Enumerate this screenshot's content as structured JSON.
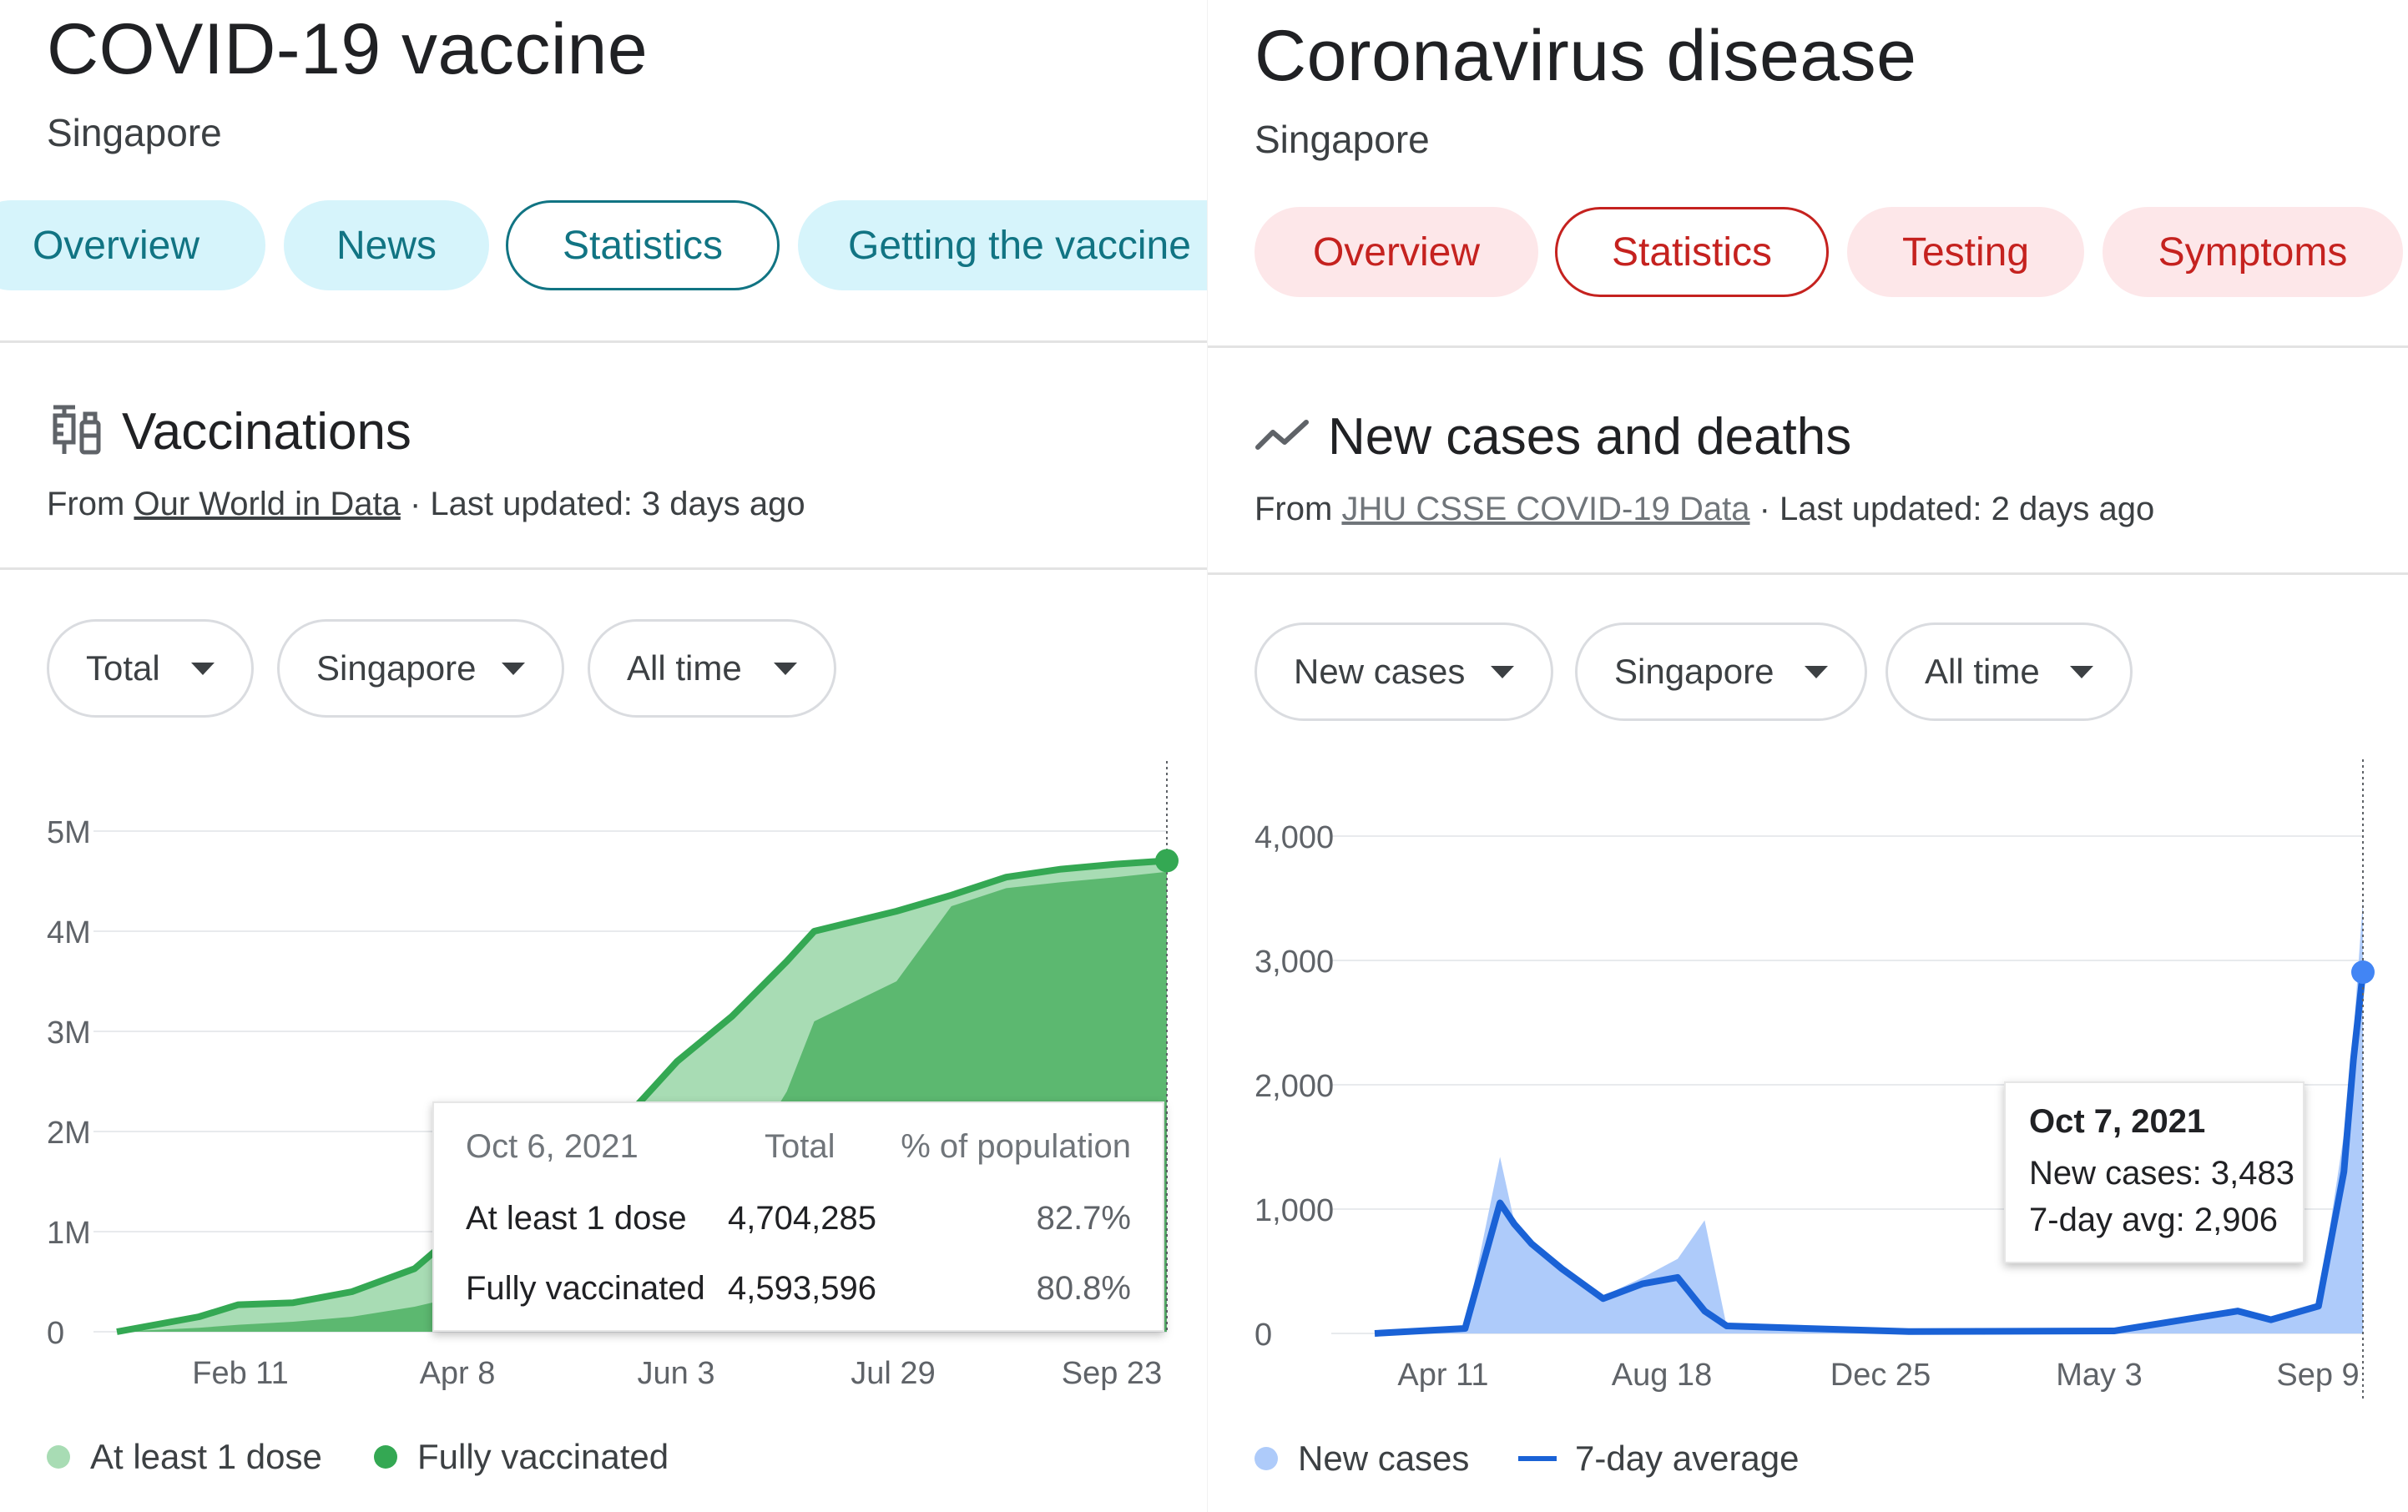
{
  "vaccine": {
    "title": "COVID-19 vaccine",
    "location": "Singapore",
    "tabs": [
      {
        "label": "Overview",
        "active": false
      },
      {
        "label": "News",
        "active": false
      },
      {
        "label": "Statistics",
        "active": true
      },
      {
        "label": "Getting the vaccine",
        "active": false
      }
    ],
    "section_title": "Vaccinations",
    "source_prefix": "From",
    "source_link": "Our World in Data",
    "source_updated": "· Last updated: 3 days ago",
    "filters": [
      "Total",
      "Singapore",
      "All time"
    ],
    "tooltip": {
      "date": "Oct 6, 2021",
      "col_total": "Total",
      "col_pct": "% of population",
      "rows": [
        {
          "label": "At least 1 dose",
          "total": "4,704,285",
          "pct": "82.7%"
        },
        {
          "label": "Fully vaccinated",
          "total": "4,593,596",
          "pct": "80.8%"
        }
      ]
    },
    "legend": [
      "At least 1 dose",
      "Fully vaccinated"
    ],
    "colors": {
      "accent": "#117483",
      "light_green": "#a8dcb4",
      "dark_green": "#5cb870",
      "line_green": "#34a853"
    }
  },
  "covid": {
    "title": "Coronavirus disease",
    "location": "Singapore",
    "tabs": [
      {
        "label": "Overview",
        "active": false
      },
      {
        "label": "Statistics",
        "active": true
      },
      {
        "label": "Testing",
        "active": false
      },
      {
        "label": "Symptoms",
        "active": false
      }
    ],
    "section_title": "New cases and deaths",
    "source_prefix": "From",
    "source_link": "JHU CSSE COVID-19 Data",
    "source_updated": "· Last updated: 2 days ago",
    "filters": [
      "New cases",
      "Singapore",
      "All time"
    ],
    "tooltip": {
      "date": "Oct 7, 2021",
      "line1": "New cases: 3,483",
      "line2": "7-day avg: 2,906"
    },
    "legend": [
      "New cases",
      "7-day average"
    ],
    "colors": {
      "accent": "#c5221f",
      "bar_blue": "#aecbfa",
      "line_blue": "#1a62d6",
      "dot_blue": "#4285f4"
    }
  },
  "chart_data": [
    {
      "type": "area",
      "x_ticks": [
        "Feb 11",
        "Apr 8",
        "Jun 3",
        "Jul 29",
        "Sep 23"
      ],
      "y_ticks": [
        "0",
        "1M",
        "2M",
        "3M",
        "4M",
        "5M"
      ],
      "ylim": [
        0,
        5000000
      ],
      "x": [
        "Jan 11",
        "Feb 1",
        "Feb 11",
        "Feb 25",
        "Mar 12",
        "Mar 28",
        "Apr 8",
        "Apr 20",
        "May 6",
        "May 20",
        "Jun 3",
        "Jun 17",
        "Jul 1",
        "Jul 8",
        "Jul 29",
        "Aug 12",
        "Aug 26",
        "Sep 9",
        "Sep 23",
        "Oct 6"
      ],
      "series": [
        {
          "name": "At least 1 dose",
          "values": [
            0,
            150000,
            270000,
            290000,
            400000,
            630000,
            1000000,
            1350000,
            1880000,
            2100000,
            2700000,
            3150000,
            3700000,
            4000000,
            4200000,
            4360000,
            4540000,
            4620000,
            4670000,
            4704285
          ]
        },
        {
          "name": "Fully vaccinated",
          "values": [
            0,
            40000,
            70000,
            100000,
            150000,
            250000,
            350000,
            460000,
            590000,
            700000,
            1000000,
            1500000,
            2400000,
            3100000,
            3500000,
            4250000,
            4430000,
            4490000,
            4540000,
            4593596
          ]
        }
      ],
      "grid": true,
      "legend_position": "bottom-left"
    },
    {
      "type": "bar",
      "x_ticks": [
        "Apr 11",
        "Aug 18",
        "Dec 25",
        "May 3",
        "Sep 9"
      ],
      "y_ticks": [
        "0",
        "1,000",
        "2,000",
        "3,000",
        "4,000"
      ],
      "ylim": [
        0,
        4000
      ],
      "x": [
        "Jan 23, 2020",
        "Mar 20, 2020",
        "Apr 11, 2020",
        "Apr 20, 2020",
        "May 1, 2020",
        "May 20, 2020",
        "Jun 15, 2020",
        "Jul 10, 2020",
        "Aug 1, 2020",
        "Aug 18, 2020",
        "Sep 1, 2020",
        "Dec 25, 2020",
        "May 3, 2021",
        "Jul 20, 2021",
        "Aug 10, 2021",
        "Sep 9, 2021",
        "Sep 25, 2021",
        "Oct 1, 2021",
        "Oct 7, 2021"
      ],
      "series": [
        {
          "name": "New cases",
          "values": [
            0,
            50,
            1420,
            900,
            700,
            550,
            300,
            450,
            600,
            910,
            50,
            15,
            20,
            200,
            100,
            250,
            1600,
            2400,
            3483
          ]
        },
        {
          "name": "7-day average",
          "values": [
            0,
            40,
            1050,
            880,
            720,
            520,
            280,
            400,
            450,
            180,
            60,
            15,
            20,
            180,
            110,
            220,
            1300,
            2200,
            2906
          ]
        }
      ],
      "grid": true,
      "legend_position": "bottom-left"
    }
  ]
}
